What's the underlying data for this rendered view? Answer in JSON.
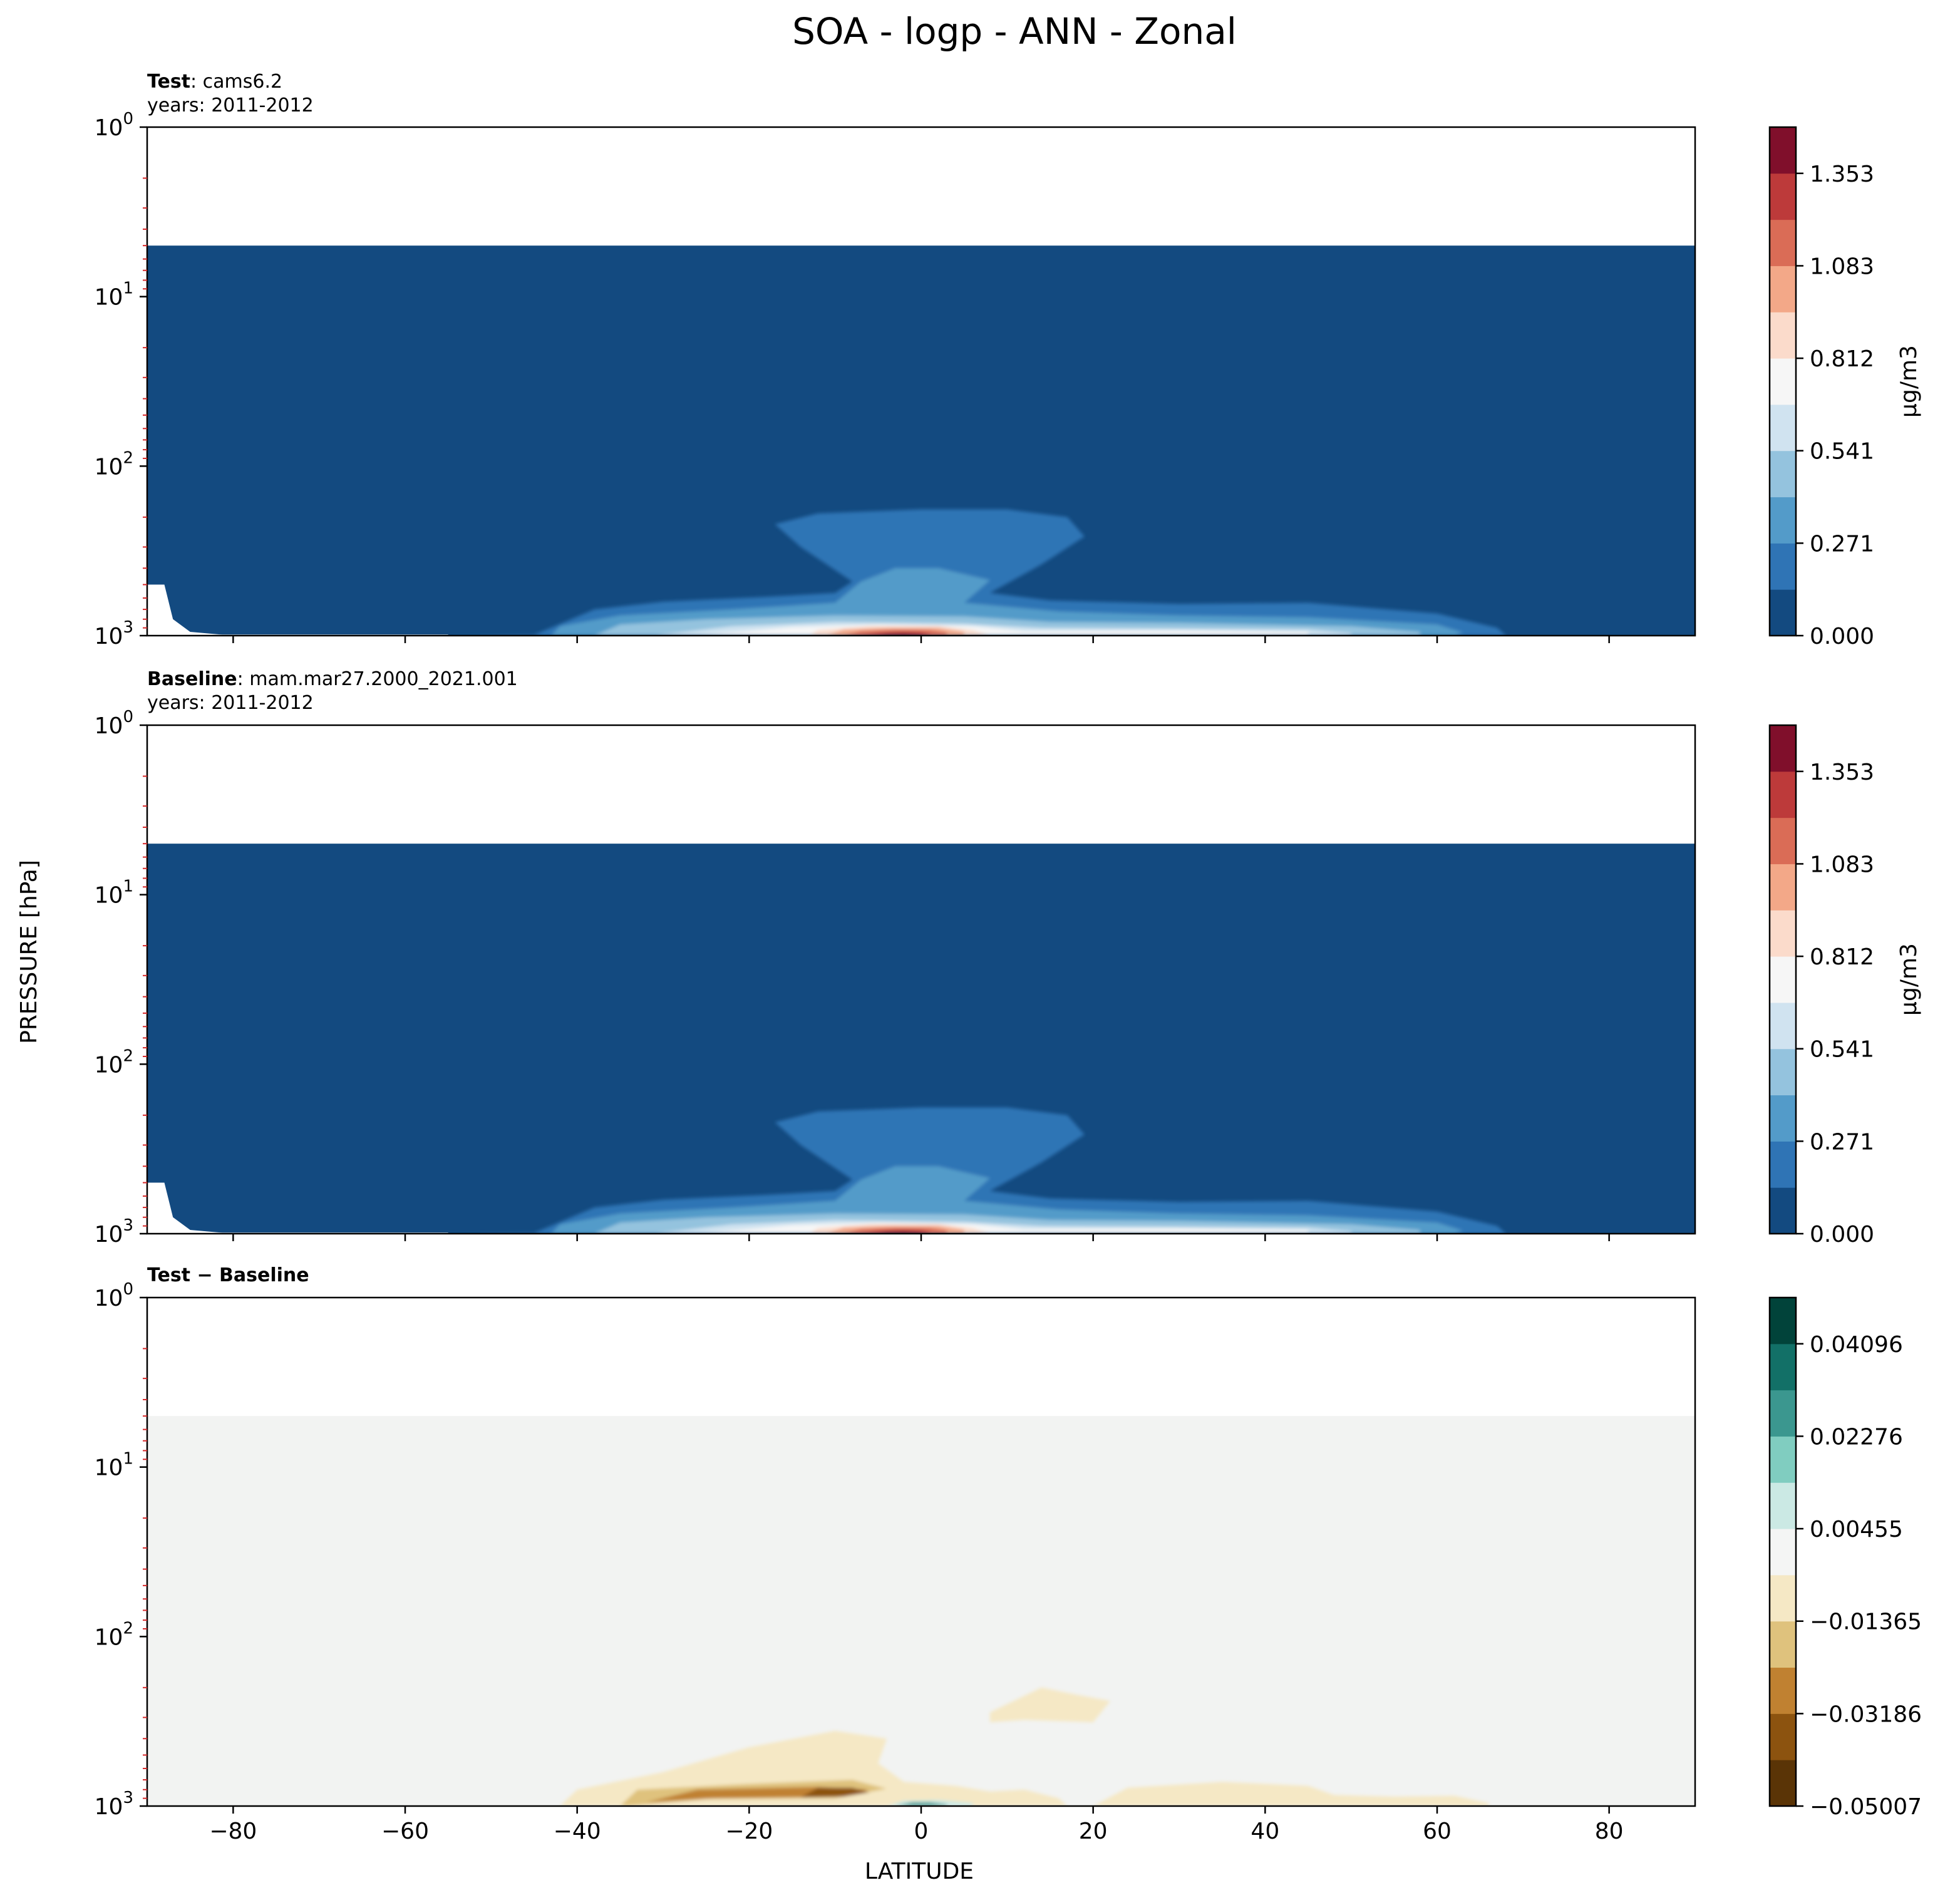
{
  "chart_data": {
    "type": "contour",
    "suptitle": "SOA - logp - ANN - Zonal",
    "xlabel": "LATITUDE",
    "ylabel": "PRESSURE [hPa]",
    "yscale": "log",
    "xlim": [
      -90,
      90
    ],
    "ylim": [
      1000,
      1
    ],
    "xticks": [
      "−80",
      "−60",
      "−40",
      "−20",
      "0",
      "20",
      "40",
      "60",
      "80"
    ],
    "ytick_exponents": [
      "0",
      "1",
      "2",
      "3"
    ],
    "ytick_base": "10",
    "panels": [
      {
        "label_bold": "Test",
        "label_rest": ": cams6.2",
        "years": "years: 2011-2012",
        "colormap": "RdBu_r",
        "colorbar_label": "μg/m3",
        "colorbar_ticks": [
          "0.000",
          "0.271",
          "0.541",
          "0.812",
          "1.083",
          "1.353"
        ],
        "colorbar_colors": [
          "#134a80",
          "#2f74b5",
          "#539bc9",
          "#94c3de",
          "#d0e3f0",
          "#f6f6f6",
          "#fbdbcb",
          "#f3a888",
          "#da6c56",
          "#bd3a3a",
          "#800f2b"
        ],
        "data_top_hPa": 5,
        "max_value_location": {
          "lat": -2,
          "hPa": 950
        }
      },
      {
        "label_bold": "Baseline",
        "label_rest": ": mam.mar27.2000_2021.001",
        "years": "years: 2011-2012",
        "colormap": "RdBu_r",
        "colorbar_label": "μg/m3",
        "colorbar_ticks": [
          "0.000",
          "0.271",
          "0.541",
          "0.812",
          "1.083",
          "1.353"
        ],
        "colorbar_colors": [
          "#134a80",
          "#2f74b5",
          "#539bc9",
          "#94c3de",
          "#d0e3f0",
          "#f6f6f6",
          "#fbdbcb",
          "#f3a888",
          "#da6c56",
          "#bd3a3a",
          "#800f2b"
        ],
        "data_top_hPa": 5,
        "max_value_location": {
          "lat": -2,
          "hPa": 950
        }
      },
      {
        "label_bold": "Test",
        "label_rest": " − Baseline",
        "years": "",
        "colormap": "BrBG",
        "colorbar_label": "",
        "colorbar_ticks": [
          "−0.05007",
          "−0.03186",
          "−0.01365",
          "0.00455",
          "0.02276",
          "0.04096"
        ],
        "colorbar_colors": [
          "#5a3406",
          "#8c530f",
          "#c08131",
          "#dfc27d",
          "#f5e8c5",
          "#f4f5f4",
          "#cbe9e4",
          "#80cdc0",
          "#3b978f",
          "#127067",
          "#01433a"
        ],
        "data_top_hPa": 5,
        "background_color": "#f2f3f2"
      }
    ]
  }
}
